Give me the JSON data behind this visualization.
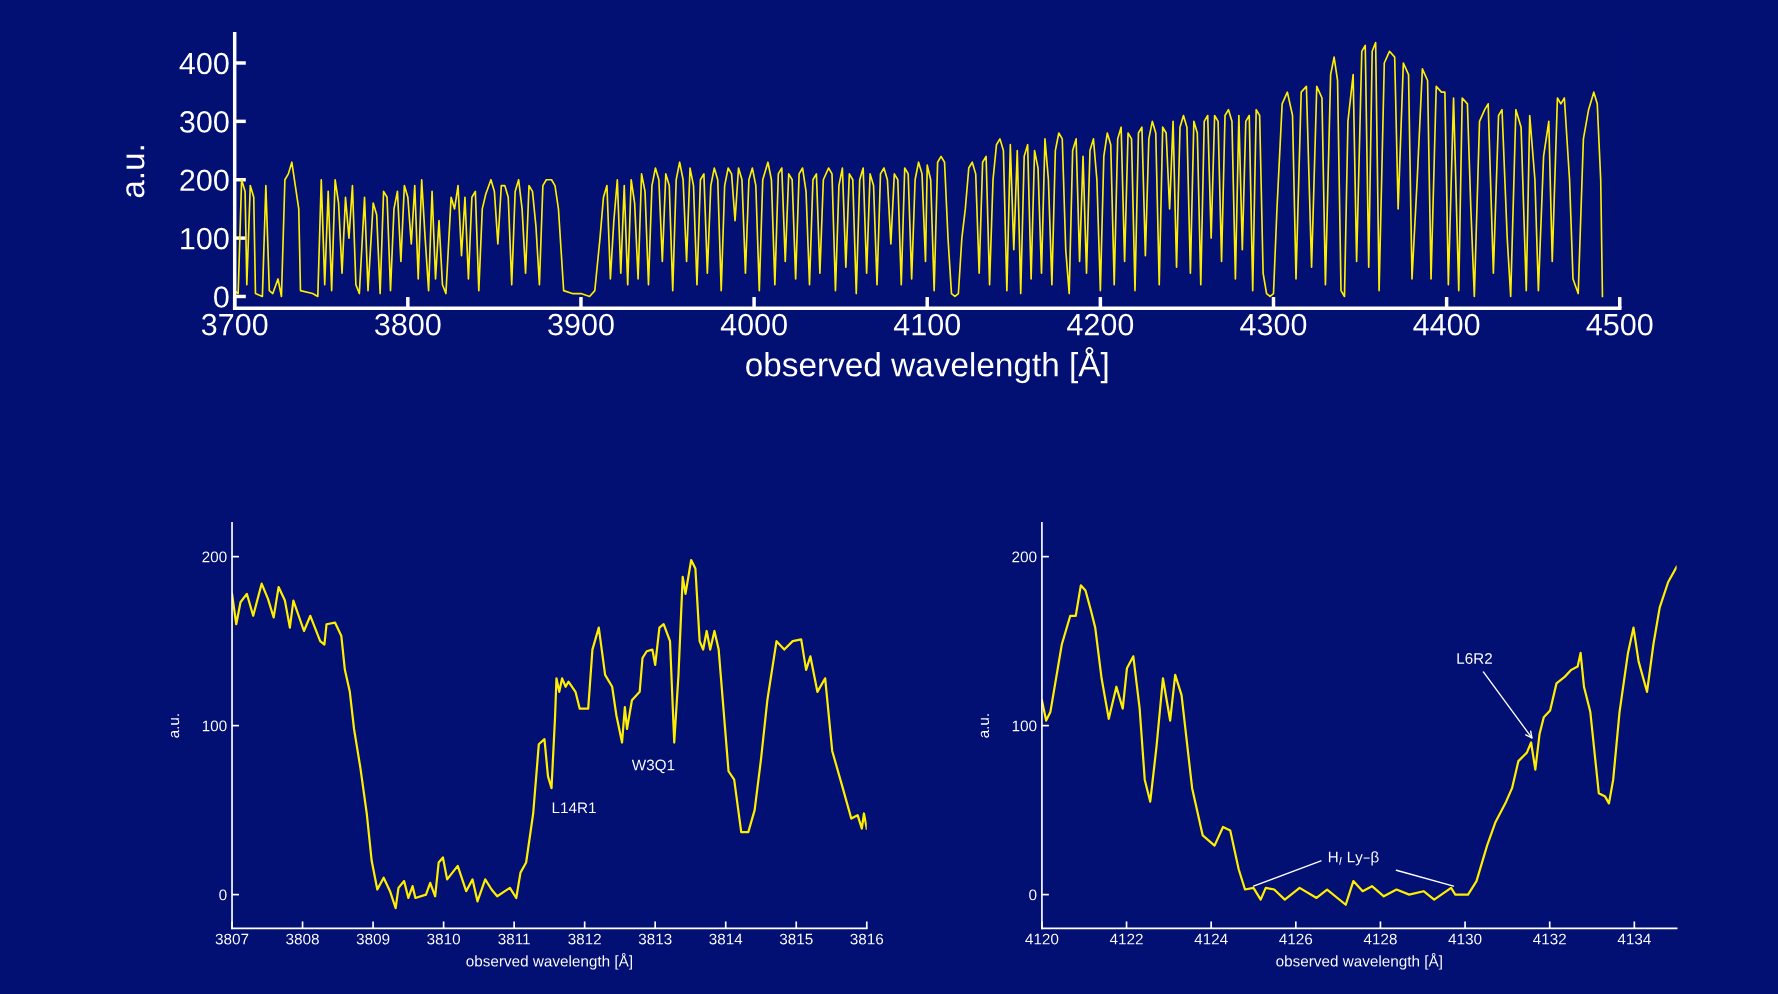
{
  "chart_data": [
    {
      "type": "line",
      "xlabel": "observed wavelength [Å]",
      "ylabel": "a.u.",
      "xlim": [
        3700,
        4500
      ],
      "ylim": [
        -20,
        450
      ],
      "xticks": [
        3700,
        3800,
        3900,
        4000,
        4100,
        4200,
        4300,
        4400,
        4500
      ],
      "yticks": [
        0,
        100,
        200,
        300,
        400
      ],
      "series": [
        {
          "color": "#ffee00",
          "x": [
            3700,
            3702,
            3704,
            3706,
            3707,
            3709,
            3711,
            3712,
            3716,
            3718,
            3720,
            3722,
            3725,
            3727,
            3729,
            3731,
            3733,
            3735,
            3737,
            3738,
            3745,
            3748,
            3750,
            3752,
            3754,
            3756,
            3758,
            3760,
            3762,
            3764,
            3766,
            3768,
            3770,
            3772,
            3775,
            3777,
            3780,
            3782,
            3784,
            3786,
            3788,
            3790,
            3792,
            3794,
            3796,
            3798,
            3800,
            3802,
            3804,
            3806,
            3808,
            3810,
            3812,
            3814,
            3816,
            3818,
            3820,
            3822,
            3825,
            3827,
            3829,
            3831,
            3833,
            3835,
            3837,
            3839,
            3841,
            3843,
            3845,
            3848,
            3850,
            3852,
            3854,
            3856,
            3858,
            3860,
            3862,
            3864,
            3866,
            3868,
            3870,
            3872,
            3874,
            3876,
            3878,
            3880,
            3883,
            3885,
            3887,
            3890,
            3895,
            3900,
            3905,
            3908,
            3911,
            3913,
            3915,
            3917,
            3919,
            3921,
            3923,
            3925,
            3927,
            3929,
            3931,
            3933,
            3935,
            3937,
            3939,
            3941,
            3943,
            3945,
            3947,
            3949,
            3951,
            3953,
            3955,
            3957,
            3959,
            3961,
            3963,
            3965,
            3967,
            3969,
            3971,
            3973,
            3975,
            3977,
            3979,
            3981,
            3983,
            3985,
            3987,
            3989,
            3991,
            3993,
            3995,
            3997,
            3999,
            4001,
            4003,
            4005,
            4008,
            4010,
            4012,
            4014,
            4016,
            4018,
            4020,
            4022,
            4024,
            4026,
            4028,
            4030,
            4032,
            4034,
            4036,
            4038,
            4040,
            4043,
            4045,
            4047,
            4049,
            4051,
            4053,
            4055,
            4057,
            4059,
            4061,
            4063,
            4065,
            4067,
            4069,
            4071,
            4073,
            4075,
            4077,
            4079,
            4081,
            4083,
            4085,
            4087,
            4089,
            4091,
            4093,
            4095,
            4097,
            4099,
            4100,
            4102,
            4104,
            4106,
            4108,
            4110,
            4112,
            4114,
            4116,
            4118,
            4120,
            4122,
            4124,
            4126,
            4128,
            4130,
            4132,
            4134,
            4136,
            4138,
            4140,
            4142,
            4144,
            4146,
            4148,
            4150,
            4152,
            4154,
            4156,
            4158,
            4160,
            4162,
            4164,
            4166,
            4168,
            4170,
            4172,
            4174,
            4176,
            4178,
            4180,
            4182,
            4184,
            4186,
            4188,
            4190,
            4192,
            4194,
            4196,
            4198,
            4200,
            4202,
            4204,
            4206,
            4208,
            4210,
            4212,
            4214,
            4216,
            4218,
            4220,
            4222,
            4224,
            4226,
            4228,
            4230,
            4232,
            4234,
            4236,
            4238,
            4240,
            4242,
            4244,
            4246,
            4248,
            4250,
            4252,
            4254,
            4256,
            4258,
            4260,
            4262,
            4264,
            4266,
            4268,
            4270,
            4272,
            4274,
            4276,
            4278,
            4280,
            4282,
            4284,
            4286,
            4288,
            4290,
            4292,
            4294,
            4296,
            4298,
            4300,
            4302,
            4305,
            4308,
            4311,
            4313,
            4316,
            4319,
            4322,
            4325,
            4328,
            4330,
            4333,
            4335,
            4337,
            4339,
            4341,
            4343,
            4346,
            4348,
            4351,
            4353,
            4355,
            4357,
            4359,
            4361,
            4364,
            4367,
            4370,
            4372,
            4375,
            4378,
            4380,
            4383,
            4386,
            4389,
            4391,
            4394,
            4397,
            4399,
            4401,
            4404,
            4407,
            4409,
            4412,
            4414,
            4416,
            4419,
            4422,
            4424,
            4427,
            4430,
            4432,
            4435,
            4437,
            4440,
            4443,
            4446,
            4448,
            4451,
            4453,
            4456,
            4459,
            4461,
            4464,
            4466,
            4468,
            4471,
            4473,
            4476,
            4479,
            4482,
            4485,
            4487,
            4489,
            4490
          ],
          "values": [
            10,
            5,
            200,
            180,
            20,
            190,
            170,
            5,
            0,
            190,
            10,
            5,
            30,
            0,
            200,
            210,
            230,
            190,
            150,
            10,
            5,
            0,
            200,
            20,
            180,
            10,
            200,
            160,
            40,
            170,
            100,
            190,
            20,
            5,
            170,
            10,
            160,
            140,
            5,
            180,
            170,
            10,
            150,
            180,
            60,
            190,
            170,
            90,
            190,
            30,
            200,
            100,
            10,
            180,
            30,
            130,
            20,
            5,
            170,
            150,
            190,
            70,
            170,
            30,
            170,
            180,
            10,
            150,
            175,
            200,
            180,
            90,
            190,
            190,
            170,
            20,
            180,
            200,
            150,
            40,
            190,
            180,
            120,
            20,
            190,
            200,
            200,
            190,
            150,
            10,
            5,
            5,
            0,
            10,
            100,
            170,
            190,
            30,
            130,
            200,
            40,
            190,
            20,
            200,
            160,
            30,
            210,
            180,
            20,
            190,
            220,
            200,
            60,
            210,
            190,
            10,
            200,
            230,
            200,
            60,
            220,
            190,
            20,
            200,
            210,
            40,
            190,
            220,
            200,
            10,
            190,
            220,
            210,
            130,
            220,
            200,
            40,
            200,
            220,
            190,
            10,
            200,
            230,
            200,
            20,
            210,
            220,
            60,
            210,
            200,
            30,
            210,
            220,
            180,
            20,
            200,
            210,
            40,
            200,
            220,
            210,
            10,
            190,
            220,
            50,
            210,
            200,
            5,
            200,
            220,
            40,
            210,
            190,
            20,
            210,
            220,
            200,
            90,
            210,
            200,
            20,
            220,
            210,
            30,
            200,
            230,
            210,
            60,
            225,
            200,
            10,
            230,
            240,
            230,
            100,
            5,
            0,
            5,
            100,
            150,
            220,
            230,
            210,
            40,
            230,
            240,
            20,
            200,
            260,
            270,
            250,
            10,
            260,
            80,
            250,
            5,
            240,
            260,
            30,
            250,
            220,
            40,
            270,
            200,
            20,
            250,
            280,
            270,
            80,
            5,
            250,
            270,
            60,
            240,
            40,
            250,
            270,
            200,
            10,
            240,
            280,
            260,
            20,
            270,
            290,
            60,
            280,
            270,
            10,
            280,
            290,
            70,
            270,
            300,
            280,
            20,
            290,
            280,
            150,
            300,
            50,
            290,
            310,
            290,
            40,
            300,
            280,
            20,
            300,
            310,
            100,
            310,
            300,
            60,
            310,
            320,
            300,
            30,
            310,
            80,
            300,
            310,
            10,
            320,
            310,
            40,
            5,
            0,
            5,
            150,
            330,
            350,
            310,
            30,
            350,
            360,
            50,
            360,
            340,
            20,
            380,
            410,
            370,
            10,
            0,
            300,
            380,
            60,
            420,
            430,
            50,
            420,
            435,
            10,
            400,
            420,
            410,
            150,
            400,
            380,
            30,
            200,
            390,
            370,
            30,
            360,
            350,
            350,
            20,
            340,
            10,
            340,
            330,
            150,
            0,
            300,
            320,
            330,
            40,
            310,
            320,
            100,
            0,
            320,
            290,
            10,
            310,
            200,
            10,
            240,
            300,
            60,
            340,
            330,
            340,
            200,
            30,
            5,
            270,
            320,
            350,
            330,
            200,
            0
          ]
        }
      ]
    },
    {
      "type": "line",
      "xlabel": "observed wavelength [Å]",
      "ylabel": "a.u.",
      "xlim": [
        3807,
        3816
      ],
      "ylim": [
        -20,
        220
      ],
      "xticks": [
        3807,
        3808,
        3809,
        3810,
        3811,
        3812,
        3813,
        3814,
        3815,
        3816
      ],
      "yticks": [
        0,
        100,
        200
      ],
      "annotations": [
        {
          "text": "L14R1",
          "x": 3811.53,
          "y": 63
        },
        {
          "text": "W3Q1",
          "x": 3813.27,
          "y": 90
        }
      ],
      "series": [
        {
          "color": "#ffee00",
          "x": [
            3807.0,
            3807.06,
            3807.12,
            3807.21,
            3807.3,
            3807.42,
            3807.51,
            3807.59,
            3807.66,
            3807.75,
            3807.82,
            3807.87,
            3808.02,
            3808.11,
            3808.25,
            3808.31,
            3808.34,
            3808.46,
            3808.55,
            3808.6,
            3808.67,
            3808.73,
            3808.82,
            3808.91,
            3808.98,
            3809.06,
            3809.15,
            3809.24,
            3809.32,
            3809.36,
            3809.44,
            3809.5,
            3809.56,
            3809.6,
            3809.75,
            3809.81,
            3809.88,
            3809.93,
            3809.99,
            3810.05,
            3810.2,
            3810.32,
            3810.41,
            3810.48,
            3810.59,
            3810.68,
            3810.76,
            3810.94,
            3811.03,
            3811.09,
            3811.17,
            3811.27,
            3811.35,
            3811.43,
            3811.48,
            3811.53,
            3811.58,
            3811.6,
            3811.64,
            3811.68,
            3811.73,
            3811.77,
            3811.87,
            3811.93,
            3812.05,
            3812.11,
            3812.2,
            3812.29,
            3812.39,
            3812.45,
            3812.53,
            3812.57,
            3812.6,
            3812.67,
            3812.78,
            3812.82,
            3812.88,
            3812.96,
            3813.0,
            3813.06,
            3813.12,
            3813.21,
            3813.27,
            3813.33,
            3813.39,
            3813.43,
            3813.51,
            3813.57,
            3813.63,
            3813.68,
            3813.73,
            3813.78,
            3813.84,
            3813.9,
            3814.04,
            3814.12,
            3814.22,
            3814.32,
            3814.41,
            3814.5,
            3814.59,
            3814.72,
            3814.83,
            3814.95,
            3815.07,
            3815.14,
            3815.2,
            3815.3,
            3815.41,
            3815.51,
            3815.66,
            3815.78,
            3815.87,
            3815.93,
            3815.96,
            3816.0
          ],
          "values": [
            178,
            160,
            173,
            178,
            165,
            184,
            175,
            164,
            182,
            174,
            158,
            174,
            156,
            165,
            150,
            148,
            160,
            161,
            153,
            133,
            120,
            98,
            75,
            48,
            20,
            3,
            10,
            2,
            -8,
            4,
            8,
            -2,
            5,
            -2,
            0,
            7,
            -1,
            19,
            22,
            9,
            17,
            2,
            9,
            -4,
            9,
            3,
            -1,
            4,
            -2,
            13,
            19,
            48,
            89,
            92,
            70,
            63,
            105,
            128,
            120,
            128,
            123,
            126,
            120,
            110,
            110,
            145,
            158,
            130,
            123,
            106,
            90,
            111,
            98,
            115,
            120,
            140,
            144,
            145,
            136,
            158,
            160,
            150,
            90,
            130,
            188,
            178,
            198,
            193,
            150,
            145,
            156,
            145,
            156,
            145,
            73,
            68,
            37,
            37,
            50,
            80,
            115,
            150,
            145,
            150,
            151,
            133,
            141,
            120,
            128,
            85,
            63,
            45,
            47,
            39,
            48,
            39
          ]
        }
      ]
    },
    {
      "type": "line",
      "xlabel": "observed wavelength [Å]",
      "ylabel": "a.u.",
      "xlim": [
        4120,
        4135
      ],
      "ylim": [
        -20,
        220
      ],
      "xticks": [
        4120,
        4122,
        4124,
        4126,
        4128,
        4130,
        4132,
        4134
      ],
      "yticks": [
        0,
        100,
        200
      ],
      "annotations": [
        {
          "text": "H$_{I}$ Ly–β",
          "x": 4125.0,
          "y": 5
        },
        {
          "text": "L6R2",
          "x": 4131.6,
          "y": 92
        }
      ],
      "series": [
        {
          "color": "#ffee00",
          "x": [
            4120.0,
            4120.1,
            4120.2,
            4120.47,
            4120.67,
            4120.8,
            4120.92,
            4121.03,
            4121.16,
            4121.26,
            4121.41,
            4121.58,
            4121.76,
            4121.91,
            4122.01,
            4122.16,
            4122.31,
            4122.43,
            4122.56,
            4122.71,
            4122.86,
            4123.03,
            4123.15,
            4123.3,
            4123.55,
            4123.8,
            4124.08,
            4124.28,
            4124.45,
            4124.65,
            4124.8,
            4125.0,
            4125.17,
            4125.29,
            4125.49,
            4125.74,
            4126.09,
            4126.49,
            4126.74,
            4127.18,
            4127.36,
            4127.58,
            4127.8,
            4128.08,
            4128.38,
            4128.68,
            4129.02,
            4129.27,
            4129.67,
            4129.77,
            4130.07,
            4130.27,
            4130.52,
            4130.72,
            4130.97,
            4131.11,
            4131.26,
            4131.46,
            4131.56,
            4131.66,
            4131.76,
            4131.86,
            4132.01,
            4132.16,
            4132.36,
            4132.51,
            4132.66,
            4132.73,
            4132.81,
            4132.96,
            4133.16,
            4133.31,
            4133.4,
            4133.5,
            4133.65,
            4133.85,
            4133.98,
            4134.1,
            4134.3,
            4134.45,
            4134.6,
            4134.8,
            4135.0
          ],
          "values": [
            115,
            103,
            108,
            148,
            165,
            165,
            183,
            180,
            168,
            158,
            128,
            104,
            123,
            110,
            134,
            141,
            110,
            68,
            55,
            88,
            128,
            103,
            130,
            118,
            63,
            35,
            29,
            40,
            38,
            15,
            3,
            4,
            -3,
            4,
            3,
            -3,
            4,
            -2,
            3,
            -6,
            8,
            2,
            5,
            -1,
            3,
            0,
            2,
            -3,
            4,
            0,
            0,
            8,
            29,
            43,
            55,
            63,
            79,
            84,
            90,
            74,
            95,
            105,
            109,
            125,
            129,
            133,
            135,
            143,
            123,
            108,
            60,
            58,
            54,
            68,
            108,
            143,
            158,
            138,
            120,
            148,
            170,
            185,
            194
          ]
        }
      ]
    }
  ]
}
